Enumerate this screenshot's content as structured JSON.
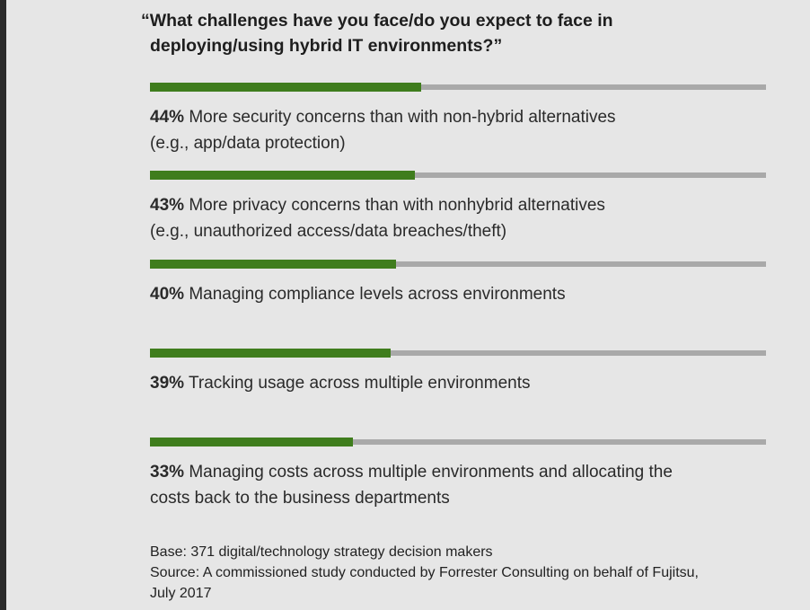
{
  "title_line1": "“What challenges have you face/do you expect to face in",
  "title_line2": "deploying/using hybrid IT environments?”",
  "chart_data": {
    "type": "bar",
    "orientation": "horizontal",
    "ylim": [
      0,
      100
    ],
    "colors": {
      "fill": "#3f7d1d",
      "track": "#a9a9a9"
    },
    "items": [
      {
        "pct_label": "44%",
        "value": 44,
        "lines": [
          "More security concerns than with non-hybrid alternatives",
          "(e.g., app/data protection)"
        ]
      },
      {
        "pct_label": "43%",
        "value": 43,
        "lines": [
          "More privacy concerns than with nonhybrid alternatives",
          "(e.g., unauthorized access/data breaches/theft)"
        ]
      },
      {
        "pct_label": "40%",
        "value": 40,
        "lines": [
          "Managing compliance levels across environments"
        ]
      },
      {
        "pct_label": "39%",
        "value": 39,
        "lines": [
          "Tracking usage across multiple environments"
        ]
      },
      {
        "pct_label": "33%",
        "value": 33,
        "lines": [
          "Managing costs across multiple environments and allocating the",
          "costs back to the business departments"
        ]
      }
    ]
  },
  "footer": {
    "base": "Base: 371 digital/technology strategy decision makers",
    "source_line1": "Source: A commissioned study conducted by Forrester Consulting on behalf of Fujitsu,",
    "source_line2": "July 2017"
  }
}
